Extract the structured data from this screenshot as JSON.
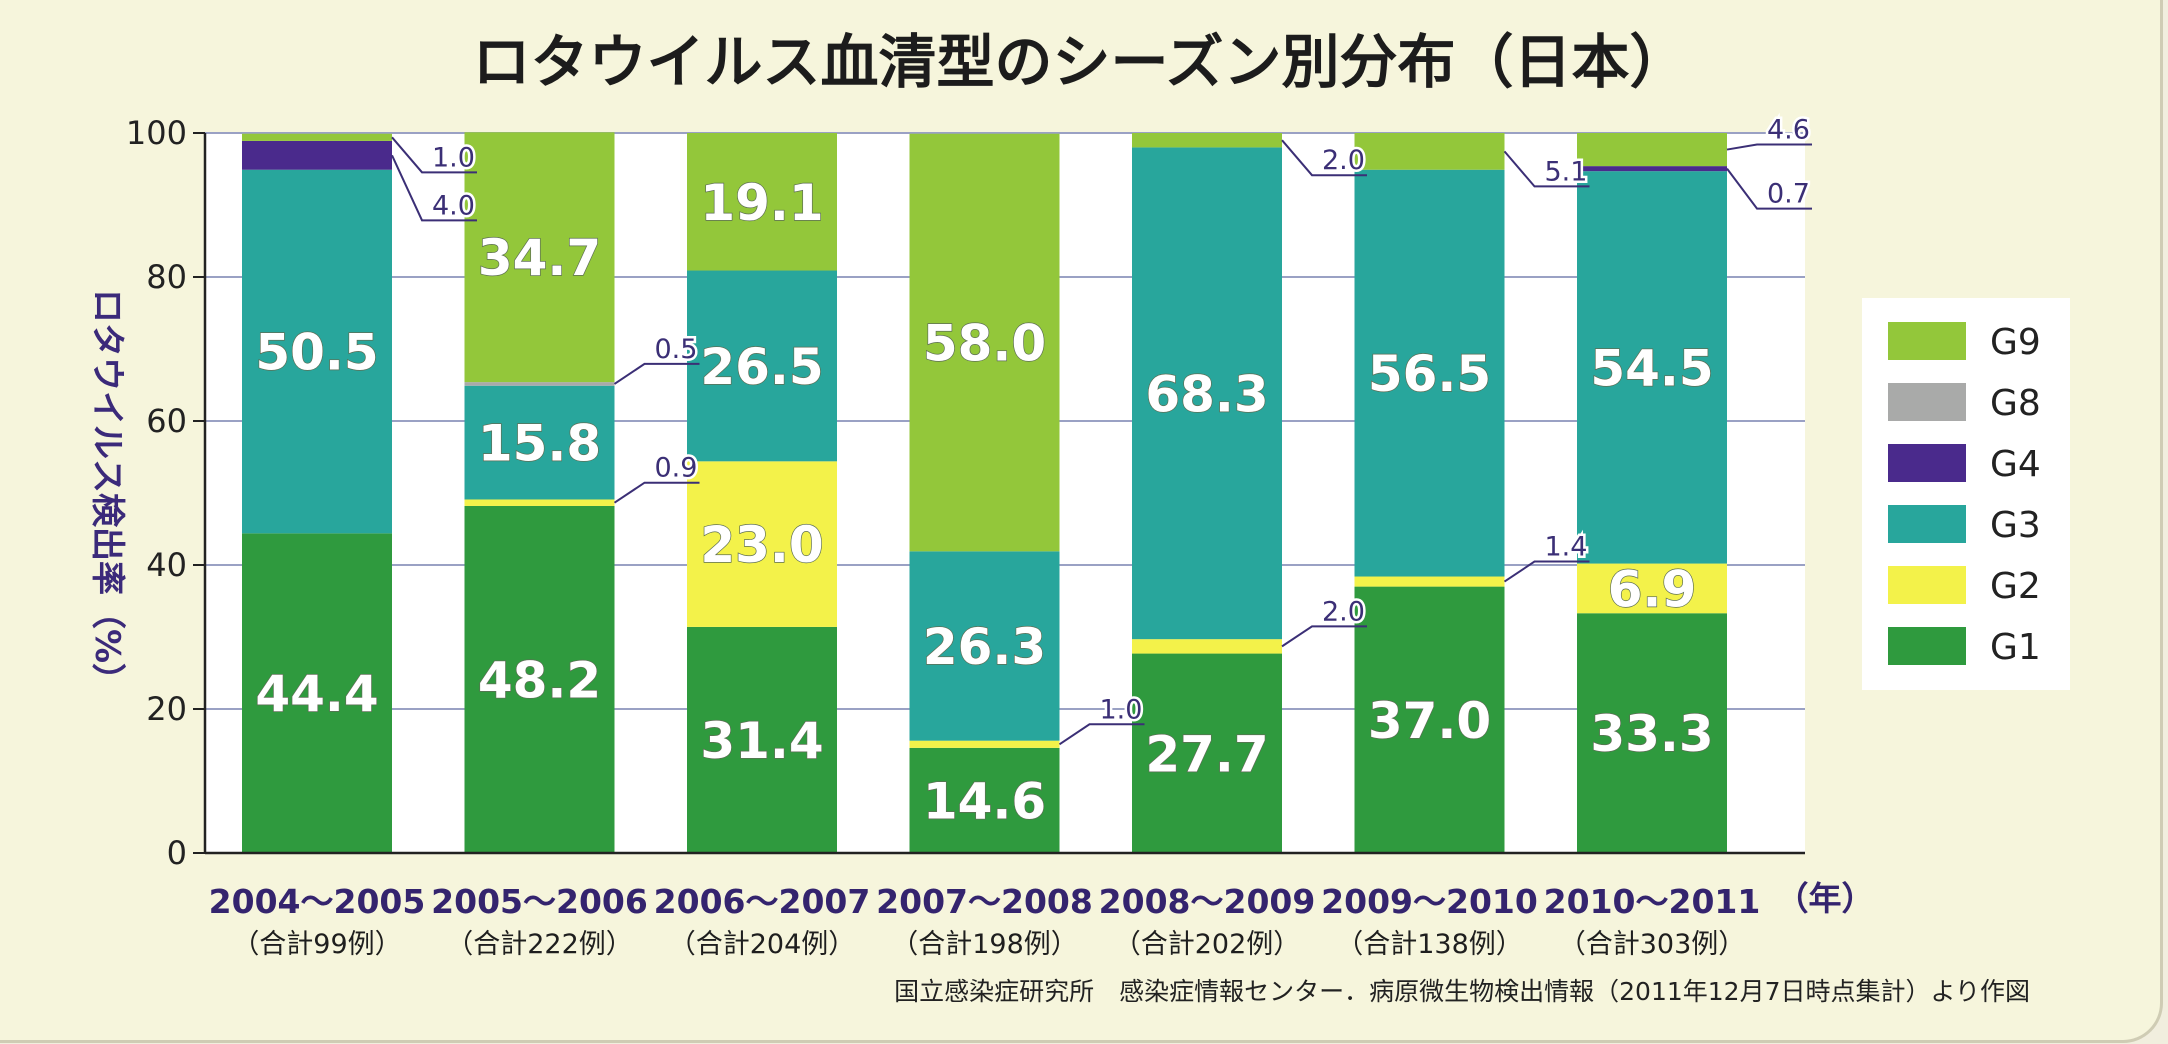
{
  "chart_data": {
    "type": "bar",
    "stacked": true,
    "title": "ロタウイルス血清型のシーズン別分布（日本）",
    "ylabel": "ロタウイルス検出率（%）",
    "ylim": [
      0,
      100
    ],
    "yticks": [
      0,
      20,
      40,
      60,
      80,
      100
    ],
    "grid": true,
    "legend_position": "right",
    "x_unit_label": "（年）",
    "categories": [
      "2004～2005",
      "2005～2006",
      "2006～2007",
      "2007～2008",
      "2008～2009",
      "2009～2010",
      "2010～2011"
    ],
    "totals": [
      "（合計99例）",
      "（合計222例）",
      "（合計204例）",
      "（合計198例）",
      "（合計202例）",
      "（合計138例）",
      "（合計303例）"
    ],
    "series": [
      {
        "name": "G1",
        "color": "#2f9a3e",
        "values": [
          44.4,
          48.2,
          31.4,
          14.6,
          27.7,
          37.0,
          33.3
        ]
      },
      {
        "name": "G2",
        "color": "#f3f24a",
        "values": [
          0,
          0.9,
          23.0,
          1.0,
          2.0,
          1.4,
          6.9
        ]
      },
      {
        "name": "G3",
        "color": "#28a69c",
        "values": [
          50.5,
          15.8,
          26.5,
          26.3,
          68.3,
          56.5,
          54.5
        ]
      },
      {
        "name": "G4",
        "color": "#4a2a8c",
        "values": [
          4.0,
          0,
          0,
          0,
          0,
          0,
          0.7
        ]
      },
      {
        "name": "G8",
        "color": "#a9aaa9",
        "values": [
          0,
          0.5,
          0,
          0,
          0,
          0,
          0
        ]
      },
      {
        "name": "G9",
        "color": "#93c73a",
        "values": [
          1.0,
          34.7,
          19.1,
          58.0,
          2.0,
          5.1,
          4.6
        ]
      }
    ],
    "labels": [
      {
        "cat": 0,
        "series": "G1",
        "text": "44.4",
        "style": "inside"
      },
      {
        "cat": 0,
        "series": "G3",
        "text": "50.5",
        "style": "inside"
      },
      {
        "cat": 0,
        "series": "G4",
        "text": "4.0",
        "style": "callout"
      },
      {
        "cat": 0,
        "series": "G9",
        "text": "1.0",
        "style": "callout"
      },
      {
        "cat": 1,
        "series": "G1",
        "text": "48.2",
        "style": "inside"
      },
      {
        "cat": 1,
        "series": "G2",
        "text": "0.9",
        "style": "callout"
      },
      {
        "cat": 1,
        "series": "G3",
        "text": "15.8",
        "style": "inside"
      },
      {
        "cat": 1,
        "series": "G8",
        "text": "0.5",
        "style": "callout"
      },
      {
        "cat": 1,
        "series": "G9",
        "text": "34.7",
        "style": "inside"
      },
      {
        "cat": 2,
        "series": "G1",
        "text": "31.4",
        "style": "inside"
      },
      {
        "cat": 2,
        "series": "G2",
        "text": "23.0",
        "style": "inside"
      },
      {
        "cat": 2,
        "series": "G3",
        "text": "26.5",
        "style": "inside"
      },
      {
        "cat": 2,
        "series": "G9",
        "text": "19.1",
        "style": "inside"
      },
      {
        "cat": 3,
        "series": "G1",
        "text": "14.6",
        "style": "inside"
      },
      {
        "cat": 3,
        "series": "G2",
        "text": "1.0",
        "style": "callout"
      },
      {
        "cat": 3,
        "series": "G3",
        "text": "26.3",
        "style": "inside"
      },
      {
        "cat": 3,
        "series": "G9",
        "text": "58.0",
        "style": "inside"
      },
      {
        "cat": 4,
        "series": "G1",
        "text": "27.7",
        "style": "inside"
      },
      {
        "cat": 4,
        "series": "G2",
        "text": "2.0",
        "style": "callout"
      },
      {
        "cat": 4,
        "series": "G3",
        "text": "68.3",
        "style": "inside"
      },
      {
        "cat": 4,
        "series": "G9",
        "text": "2.0",
        "style": "callout"
      },
      {
        "cat": 5,
        "series": "G1",
        "text": "37.0",
        "style": "inside"
      },
      {
        "cat": 5,
        "series": "G2",
        "text": "1.4",
        "style": "callout"
      },
      {
        "cat": 5,
        "series": "G3",
        "text": "56.5",
        "style": "inside"
      },
      {
        "cat": 5,
        "series": "G9",
        "text": "5.1",
        "style": "callout"
      },
      {
        "cat": 6,
        "series": "G1",
        "text": "33.3",
        "style": "inside"
      },
      {
        "cat": 6,
        "series": "G2",
        "text": "6.9",
        "style": "inside"
      },
      {
        "cat": 6,
        "series": "G3",
        "text": "54.5",
        "style": "inside"
      },
      {
        "cat": 6,
        "series": "G4",
        "text": "0.7",
        "style": "callout"
      },
      {
        "cat": 6,
        "series": "G9",
        "text": "4.6",
        "style": "callout"
      }
    ],
    "legend_order": [
      "G9",
      "G8",
      "G4",
      "G3",
      "G2",
      "G1"
    ]
  },
  "source": "国立感染症研究所　感染症情報センター．病原微生物検出情報（2011年12月7日時点集計）より作図"
}
